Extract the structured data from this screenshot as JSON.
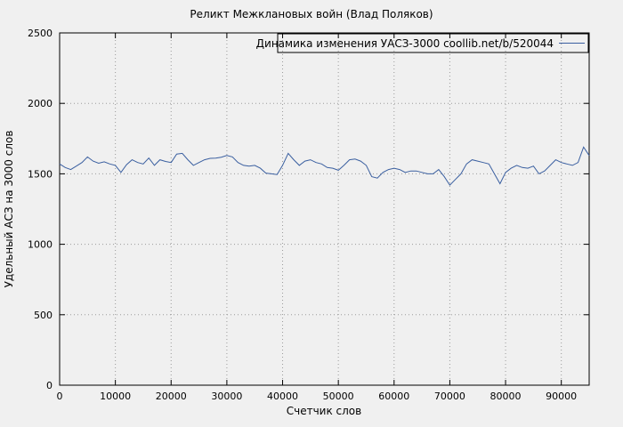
{
  "chart_data": {
    "type": "line",
    "title": "Реликт Межклановых войн (Влад Поляков)",
    "xlabel": "Счетчик слов",
    "ylabel": "Удельный АСЗ на 3000 слов",
    "legend": "Динамика изменения УАСЗ-3000  coollib.net/b/520044",
    "xlim": [
      0,
      95000
    ],
    "ylim": [
      0,
      2500
    ],
    "xticks": [
      0,
      10000,
      20000,
      30000,
      40000,
      50000,
      60000,
      70000,
      80000,
      90000
    ],
    "yticks": [
      0,
      500,
      1000,
      1500,
      2000,
      2500
    ],
    "x_step": 1000,
    "grid": true,
    "legend_position": "top-right",
    "line_color": "#3a5fa0",
    "grid_color": "#9a9a9a",
    "background": "#f0f0f0",
    "values": [
      1570,
      1545,
      1530,
      1555,
      1580,
      1620,
      1590,
      1575,
      1585,
      1570,
      1560,
      1510,
      1565,
      1600,
      1580,
      1570,
      1612,
      1560,
      1600,
      1588,
      1580,
      1640,
      1645,
      1600,
      1560,
      1580,
      1600,
      1610,
      1612,
      1618,
      1630,
      1620,
      1580,
      1560,
      1555,
      1560,
      1540,
      1505,
      1500,
      1495,
      1560,
      1645,
      1600,
      1560,
      1590,
      1600,
      1580,
      1570,
      1545,
      1540,
      1525,
      1560,
      1600,
      1605,
      1590,
      1560,
      1480,
      1470,
      1510,
      1530,
      1540,
      1530,
      1510,
      1520,
      1520,
      1510,
      1500,
      1500,
      1530,
      1480,
      1420,
      1460,
      1500,
      1570,
      1600,
      1590,
      1580,
      1570,
      1500,
      1430,
      1510,
      1540,
      1560,
      1545,
      1540,
      1555,
      1500,
      1520,
      1560,
      1600,
      1580,
      1570,
      1560,
      1580,
      1690,
      1630
    ]
  }
}
